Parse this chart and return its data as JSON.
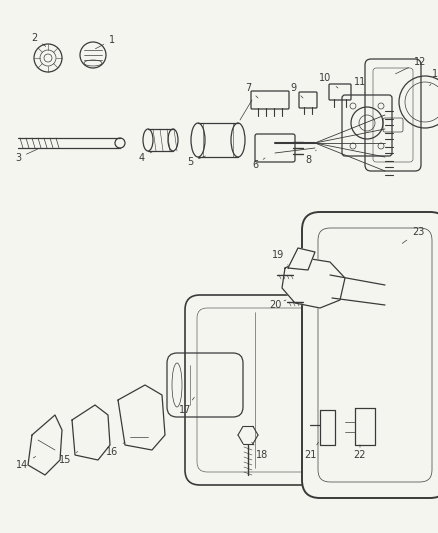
{
  "bg_color": "#f5f5f0",
  "line_color": "#3a3a3a",
  "lw": 0.9,
  "fig_width": 4.38,
  "fig_height": 5.33,
  "dpi": 100
}
